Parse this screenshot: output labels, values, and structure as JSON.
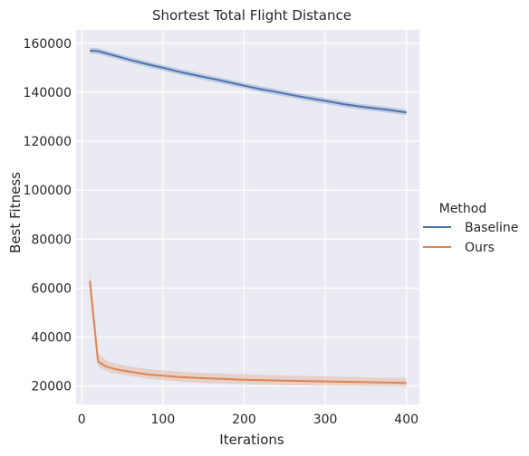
{
  "chart_data": {
    "type": "line",
    "title": "Shortest Total Flight Distance",
    "xlabel": "Iterations",
    "ylabel": "Best Fitness",
    "xlim": [
      -7,
      416
    ],
    "ylim": [
      12500,
      165500
    ],
    "xticks": [
      0,
      100,
      200,
      300,
      400
    ],
    "yticks": [
      20000,
      40000,
      60000,
      80000,
      100000,
      120000,
      140000,
      160000
    ],
    "grid": true,
    "legend": {
      "title": "Method",
      "position": "right"
    },
    "series": [
      {
        "name": "Baseline",
        "color": "#4c72b0",
        "x": [
          10,
          20,
          40,
          60,
          80,
          100,
          120,
          140,
          160,
          180,
          200,
          220,
          240,
          260,
          280,
          300,
          320,
          340,
          360,
          380,
          400
        ],
        "y": [
          157000,
          156800,
          155000,
          153200,
          151500,
          150000,
          148400,
          147000,
          145600,
          144200,
          142700,
          141300,
          140100,
          138800,
          137600,
          136500,
          135300,
          134300,
          133500,
          132700,
          131800
        ],
        "lower": [
          155800,
          155600,
          153800,
          152000,
          150300,
          148800,
          147200,
          145800,
          144400,
          143000,
          141500,
          140100,
          138900,
          137600,
          136400,
          135300,
          134100,
          133100,
          132300,
          131500,
          130600
        ],
        "upper": [
          158200,
          158000,
          156200,
          154400,
          152700,
          151200,
          149600,
          148200,
          146800,
          145400,
          143900,
          142500,
          141300,
          140000,
          138800,
          137700,
          136500,
          135500,
          134700,
          133900,
          133000
        ]
      },
      {
        "name": "Ours",
        "color": "#dd8452",
        "x": [
          10,
          20,
          30,
          40,
          60,
          80,
          100,
          120,
          150,
          200,
          250,
          300,
          350,
          400
        ],
        "y": [
          63000,
          30000,
          28000,
          27000,
          25800,
          24800,
          24200,
          23700,
          23200,
          22600,
          22200,
          21900,
          21600,
          21300
        ],
        "lower": [
          58000,
          28000,
          26200,
          25200,
          24100,
          23100,
          22400,
          21900,
          21300,
          20800,
          20400,
          20100,
          19900,
          19700
        ],
        "upper": [
          68000,
          33000,
          30500,
          29300,
          28000,
          27000,
          26400,
          25900,
          25400,
          24800,
          24300,
          24000,
          23600,
          23300
        ]
      }
    ]
  }
}
